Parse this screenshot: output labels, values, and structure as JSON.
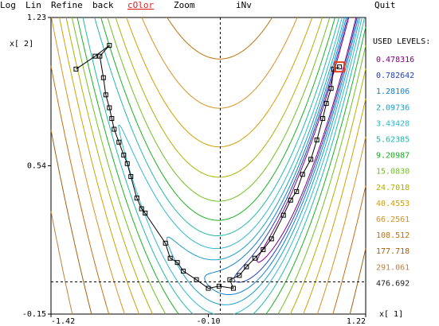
{
  "menu": [
    "Log",
    "Lin",
    "Refine",
    "back",
    "cOlor",
    "Zoom",
    "iNv",
    "Quit"
  ],
  "plot": {
    "x_label": "x[ 1]",
    "y_label": "x[ 2]",
    "xlim": [
      -1.42,
      1.22
    ],
    "ylim": [
      -0.15,
      1.23
    ],
    "xticks": [
      -1.42,
      {
        "value": -0.1,
        "label": "-0.10"
      },
      1.22
    ],
    "yticks": [
      -0.15,
      0.54,
      1.23
    ],
    "levels_title": "USED LEVELS:",
    "levels": [
      {
        "value": 0.478316,
        "color": "#800080"
      },
      {
        "value": 0.782642,
        "color": "#2040c0"
      },
      {
        "value": 1.28106,
        "color": "#1480d0"
      },
      {
        "value": 2.09736,
        "color": "#18a0c8"
      },
      {
        "value": 3.43428,
        "color": "#30b8d0"
      },
      {
        "value": 5.62385,
        "color": "#20b8a8"
      },
      {
        "value": 9.20987,
        "color": "#18b020"
      },
      {
        "value": 15.083,
        "label": "15.0830",
        "color": "#70c020"
      },
      {
        "value": 24.7018,
        "color": "#b0b000"
      },
      {
        "value": 40.4553,
        "color": "#d0a000"
      },
      {
        "value": 66.2561,
        "color": "#d89020"
      },
      {
        "value": 108.512,
        "color": "#c07010"
      },
      {
        "value": 177.718,
        "color": "#a06010"
      },
      {
        "value": 291.061,
        "color": "#c08040"
      },
      {
        "value": 476.692,
        "color": "#202020"
      }
    ],
    "path": {
      "x": [
        -1.21,
        -1.05,
        -0.93,
        -1.01,
        -0.98,
        -0.96,
        -0.93,
        -0.91,
        -0.89,
        -0.85,
        -0.81,
        -0.78,
        -0.75,
        -0.7,
        -0.66,
        -0.63,
        -0.46,
        -0.42,
        -0.36,
        -0.31,
        -0.2,
        -0.1,
        -0.01,
        0.11,
        0.08,
        0.16,
        0.22,
        0.29,
        0.36,
        0.43,
        0.53,
        0.59,
        0.64,
        0.69,
        0.76,
        0.81,
        0.86,
        0.89,
        0.93,
        0.95,
        1.0
      ],
      "y": [
        0.99,
        1.05,
        1.1,
        1.05,
        0.95,
        0.87,
        0.81,
        0.76,
        0.71,
        0.65,
        0.59,
        0.55,
        0.49,
        0.39,
        0.34,
        0.32,
        0.18,
        0.11,
        0.09,
        0.05,
        0.01,
        -0.03,
        -0.02,
        -0.03,
        0.01,
        0.03,
        0.07,
        0.11,
        0.15,
        0.2,
        0.31,
        0.38,
        0.42,
        0.5,
        0.57,
        0.66,
        0.76,
        0.83,
        0.9,
        0.99,
        1.0
      ]
    }
  }
}
